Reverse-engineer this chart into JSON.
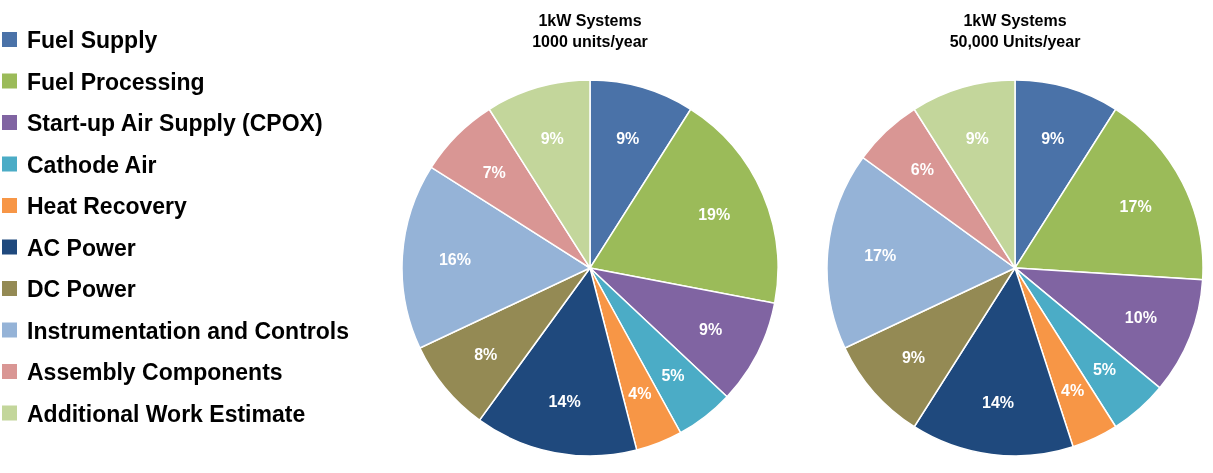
{
  "chart_data": [
    {
      "type": "pie",
      "title": "1kW Systems\n1000 units/year",
      "categories": [
        "Fuel Supply",
        "Fuel Processing",
        "Start-up Air Supply (CPOX)",
        "Cathode Air",
        "Heat Recovery",
        "AC Power",
        "DC Power",
        "Instrumentation and Controls",
        "Assembly Components",
        "Additional Work Estimate"
      ],
      "values": [
        9,
        19,
        9,
        5,
        4,
        14,
        8,
        16,
        7,
        9
      ],
      "value_labels": [
        "9%",
        "19%",
        "9%",
        "5%",
        "4%",
        "14%",
        "8%",
        "16%",
        "7%",
        "9%"
      ],
      "colors": [
        "#4a72a8",
        "#9bbb59",
        "#8064a2",
        "#4bacc6",
        "#f79646",
        "#1f497d",
        "#948a54",
        "#95b3d7",
        "#d99694",
        "#c3d69b"
      ],
      "legend": "left"
    },
    {
      "type": "pie",
      "title": "1kW Systems\n50,000 Units/year",
      "categories": [
        null,
        null,
        null,
        null,
        null,
        null,
        null,
        null,
        null,
        null
      ],
      "values": [
        9,
        17,
        10,
        5,
        4,
        14,
        9,
        17,
        6,
        9
      ],
      "value_labels": [
        "9%",
        "17%",
        "10%",
        "5%",
        "4%",
        "14%",
        "9%",
        "17%",
        "6%",
        "9%"
      ],
      "colors": [
        "#4a72a8",
        "#9bbb59",
        "#8064a2",
        "#4bacc6",
        "#f79646",
        "#1f497d",
        "#948a54",
        "#95b3d7",
        "#d99694",
        "#c3d69b"
      ]
    }
  ]
}
